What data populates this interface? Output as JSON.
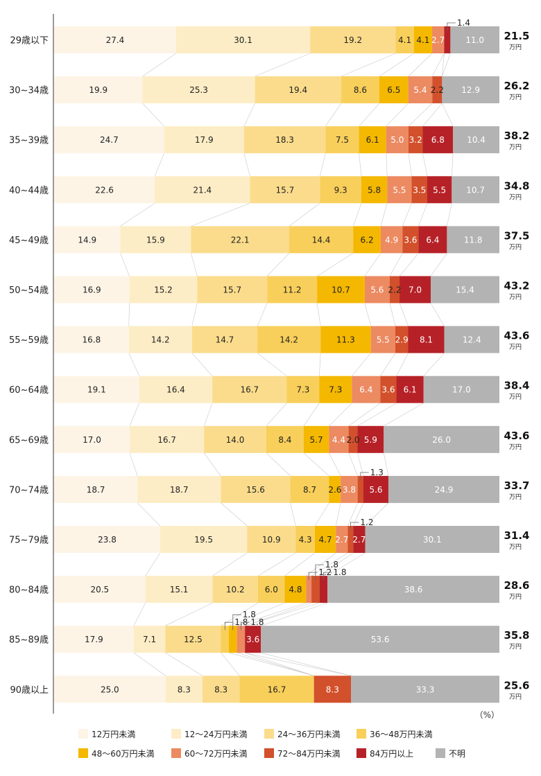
{
  "chart_data": {
    "type": "bar",
    "orientation": "horizontal",
    "stacked": true,
    "percent": true,
    "unit_label": "（%）",
    "avg_unit": "万円",
    "series": [
      {
        "name": "12万円未満",
        "color": "#fdf4e6"
      },
      {
        "name": "12〜24万円未満",
        "color": "#fdedc6"
      },
      {
        "name": "24〜36万円未満",
        "color": "#fbdc8c"
      },
      {
        "name": "36〜48万円未満",
        "color": "#f8cf5a"
      },
      {
        "name": "48〜60万円未満",
        "color": "#f4b800"
      },
      {
        "name": "60〜72万円未満",
        "color": "#ec8a62"
      },
      {
        "name": "72〜84万円未満",
        "color": "#d2502b"
      },
      {
        "name": "84万円以上",
        "color": "#b62127"
      },
      {
        "name": "不明",
        "color": "#b3b3b3"
      }
    ],
    "categories": [
      {
        "label": "29歳以下",
        "values": [
          27.4,
          30.1,
          19.2,
          4.1,
          4.1,
          2.7,
          0,
          1.4,
          11.0
        ],
        "avg": "21.5",
        "callouts": [
          {
            "seg": 7,
            "text": "1.4",
            "level": 1
          }
        ]
      },
      {
        "label": "30~34歳",
        "values": [
          19.9,
          25.3,
          19.4,
          8.6,
          6.5,
          5.4,
          2.2,
          0,
          12.9
        ],
        "avg": "26.2",
        "callouts": []
      },
      {
        "label": "35~39歳",
        "values": [
          24.7,
          17.9,
          18.3,
          7.5,
          6.1,
          5.0,
          3.2,
          6.8,
          10.4
        ],
        "avg": "38.2",
        "callouts": []
      },
      {
        "label": "40~44歳",
        "values": [
          22.6,
          21.4,
          15.7,
          9.3,
          5.8,
          5.5,
          3.5,
          5.5,
          10.7
        ],
        "avg": "34.8",
        "callouts": []
      },
      {
        "label": "45~49歳",
        "values": [
          14.9,
          15.9,
          22.1,
          14.4,
          6.2,
          4.9,
          3.6,
          6.4,
          11.8
        ],
        "avg": "37.5",
        "callouts": []
      },
      {
        "label": "50~54歳",
        "values": [
          16.9,
          15.2,
          15.7,
          11.2,
          10.7,
          5.6,
          2.2,
          7.0,
          15.4
        ],
        "avg": "43.2",
        "callouts": []
      },
      {
        "label": "55~59歳",
        "values": [
          16.8,
          14.2,
          14.7,
          14.2,
          11.3,
          5.5,
          2.9,
          8.1,
          12.4
        ],
        "avg": "43.6",
        "callouts": []
      },
      {
        "label": "60~64歳",
        "values": [
          19.1,
          16.4,
          16.7,
          7.3,
          7.3,
          6.4,
          3.6,
          6.1,
          17.0
        ],
        "avg": "38.4",
        "callouts": []
      },
      {
        "label": "65~69歳",
        "values": [
          17.0,
          16.7,
          14.0,
          8.4,
          5.7,
          4.4,
          2.0,
          5.9,
          26.0
        ],
        "avg": "43.6",
        "callouts": []
      },
      {
        "label": "70~74歳",
        "values": [
          18.7,
          18.7,
          15.6,
          8.7,
          2.6,
          3.8,
          1.3,
          5.6,
          24.9
        ],
        "avg": "33.7",
        "callouts": [
          {
            "seg": 6,
            "text": "1.3",
            "level": 1
          }
        ]
      },
      {
        "label": "75~79歳",
        "values": [
          23.8,
          19.5,
          10.9,
          4.3,
          4.7,
          2.7,
          1.2,
          2.7,
          30.1
        ],
        "avg": "31.4",
        "callouts": [
          {
            "seg": 6,
            "text": "1.2",
            "level": 1
          }
        ]
      },
      {
        "label": "80~84歳",
        "values": [
          20.5,
          15.1,
          10.2,
          6.0,
          4.8,
          1.2,
          1.8,
          1.8,
          38.6
        ],
        "avg": "28.6",
        "callouts": [
          {
            "seg": 5,
            "text": "1.2",
            "level": 1
          },
          {
            "seg": 6,
            "text": "1.8",
            "level": 2
          },
          {
            "seg": 7,
            "text": "1.8",
            "level": 1
          }
        ]
      },
      {
        "label": "85~89歳",
        "values": [
          17.9,
          7.1,
          12.5,
          1.8,
          1.8,
          1.8,
          0,
          3.6,
          53.6
        ],
        "avg": "35.8",
        "callouts": [
          {
            "seg": 3,
            "text": "1.8",
            "level": 1
          },
          {
            "seg": 4,
            "text": "1.8",
            "level": 2
          },
          {
            "seg": 5,
            "text": "1.8",
            "level": 1
          }
        ]
      },
      {
        "label": "90歳以上",
        "values": [
          25.0,
          8.3,
          8.3,
          16.7,
          0,
          0,
          8.3,
          0,
          33.3
        ],
        "avg": "25.6",
        "callouts": []
      }
    ]
  }
}
